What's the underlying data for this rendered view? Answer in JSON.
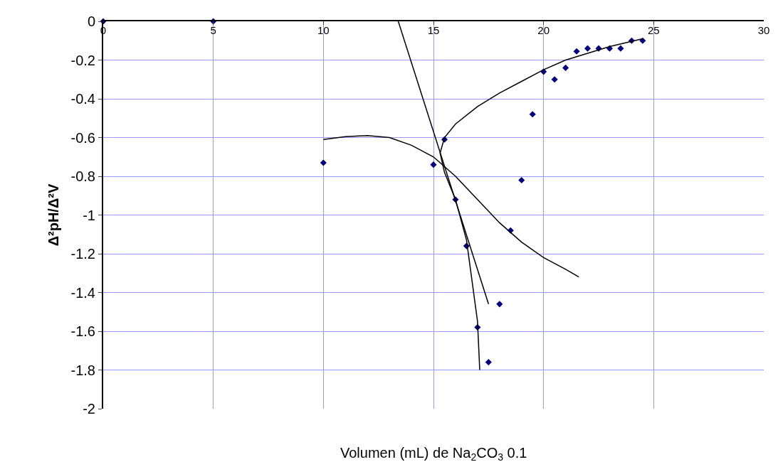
{
  "chart_data": {
    "type": "scatter",
    "xlabel": "Volumen (mL) de Na$_{2}$CO$_{3}$ 0.1",
    "ylabel": "Δ²pH/Δ²V",
    "xlim": [
      0,
      30
    ],
    "xticks": [
      0,
      5,
      10,
      15,
      20,
      25,
      30
    ],
    "ylim": [
      -2,
      0
    ],
    "yticks": [
      0,
      -0.2,
      -0.4,
      -0.6,
      -0.8,
      -1,
      -1.2,
      -1.4,
      -1.6,
      -1.8,
      -2
    ],
    "grid": true,
    "series": [
      {
        "color": "#000080",
        "x": [
          0,
          5,
          10,
          15,
          15.5,
          16,
          16.5,
          17,
          17.5,
          18,
          18.5,
          19,
          19.5,
          20,
          20.5,
          21,
          21.5,
          22,
          22.5,
          23,
          23.5,
          24,
          24.5
        ],
        "values": [
          0,
          0,
          -0.73,
          -0.74,
          -0.61,
          -0.92,
          -1.16,
          -1.58,
          -1.76,
          -1.46,
          -1.08,
          -0.82,
          -0.48,
          -0.26,
          -0.3,
          -0.24,
          -0.155,
          -0.14,
          -0.14,
          -0.14,
          -0.14,
          -0.1,
          -0.1
        ],
        "marker": "diamond"
      },
      {
        "type": "line",
        "color": "#000000",
        "line_style": "solid",
        "x": [
          13.4,
          17.5
        ],
        "values": [
          0,
          -1.46
        ]
      },
      {
        "type": "line",
        "color": "#000000",
        "line_style": "solid",
        "x": [
          10,
          11,
          12,
          13,
          14,
          15,
          16,
          17,
          18,
          19,
          20,
          21,
          21.6
        ],
        "values": [
          -0.61,
          -0.595,
          -0.59,
          -0.6,
          -0.64,
          -0.7,
          -0.8,
          -0.92,
          -1.04,
          -1.14,
          -1.22,
          -1.28,
          -1.32
        ]
      },
      {
        "type": "line",
        "color": "#000000",
        "line_style": "solid",
        "x": [
          24.5,
          23,
          21,
          20,
          19,
          18,
          17,
          16,
          15.5,
          15.3,
          15.5,
          16,
          16.5,
          17,
          17.1
        ],
        "values": [
          -0.09,
          -0.13,
          -0.2,
          -0.25,
          -0.31,
          -0.37,
          -0.44,
          -0.53,
          -0.6,
          -0.68,
          -0.78,
          -0.92,
          -1.13,
          -1.55,
          -1.8
        ]
      }
    ]
  }
}
